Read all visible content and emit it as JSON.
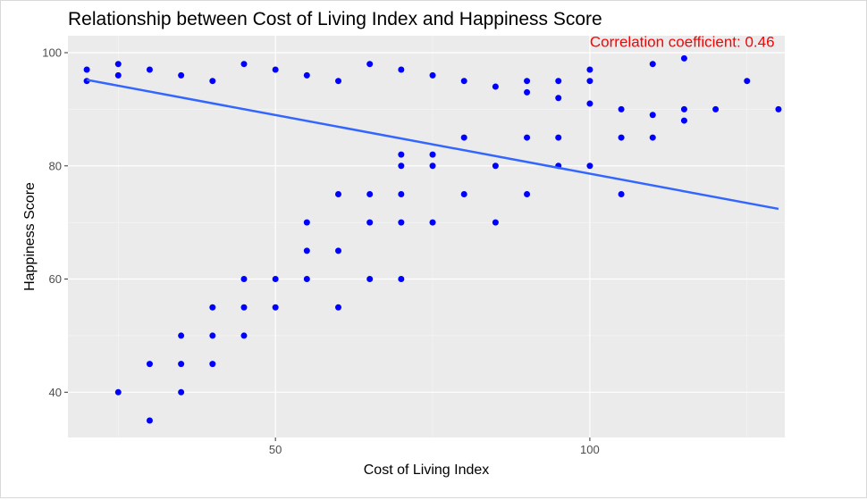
{
  "chart_data": {
    "type": "scatter",
    "title": "Relationship between Cost of Living Index and Happiness Score",
    "xlabel": "Cost of Living Index",
    "ylabel": "Happiness Score",
    "xlim": [
      17,
      131
    ],
    "ylim": [
      32,
      103
    ],
    "x_ticks": [
      50,
      100
    ],
    "y_ticks": [
      40,
      60,
      80,
      100
    ],
    "x_tick_labels": [
      "50",
      "100"
    ],
    "y_tick_labels": [
      "40",
      "60",
      "80",
      "100"
    ],
    "grid": true,
    "point_color": "#0000ff",
    "trend_color": "#3366ff",
    "annotation": {
      "text": "Correlation coefficient: 0.46",
      "color": "#ff0000",
      "x": 100,
      "y": 101
    },
    "points": [
      [
        20,
        97
      ],
      [
        20,
        95
      ],
      [
        25,
        98
      ],
      [
        25,
        96
      ],
      [
        25,
        40
      ],
      [
        30,
        97
      ],
      [
        30,
        45
      ],
      [
        30,
        35
      ],
      [
        35,
        96
      ],
      [
        35,
        50
      ],
      [
        35,
        45
      ],
      [
        35,
        40
      ],
      [
        40,
        95
      ],
      [
        40,
        55
      ],
      [
        40,
        50
      ],
      [
        40,
        45
      ],
      [
        45,
        98
      ],
      [
        45,
        60
      ],
      [
        45,
        55
      ],
      [
        45,
        50
      ],
      [
        50,
        97
      ],
      [
        50,
        60
      ],
      [
        50,
        55
      ],
      [
        55,
        96
      ],
      [
        55,
        70
      ],
      [
        55,
        65
      ],
      [
        55,
        60
      ],
      [
        60,
        95
      ],
      [
        60,
        75
      ],
      [
        60,
        65
      ],
      [
        60,
        55
      ],
      [
        65,
        98
      ],
      [
        65,
        75
      ],
      [
        65,
        70
      ],
      [
        65,
        60
      ],
      [
        70,
        97
      ],
      [
        70,
        82
      ],
      [
        70,
        80
      ],
      [
        70,
        75
      ],
      [
        70,
        70
      ],
      [
        70,
        60
      ],
      [
        75,
        96
      ],
      [
        75,
        82
      ],
      [
        75,
        80
      ],
      [
        75,
        70
      ],
      [
        80,
        95
      ],
      [
        80,
        85
      ],
      [
        80,
        75
      ],
      [
        85,
        94
      ],
      [
        85,
        80
      ],
      [
        85,
        70
      ],
      [
        90,
        95
      ],
      [
        90,
        93
      ],
      [
        90,
        85
      ],
      [
        90,
        75
      ],
      [
        95,
        95
      ],
      [
        95,
        92
      ],
      [
        95,
        85
      ],
      [
        95,
        80
      ],
      [
        100,
        97
      ],
      [
        100,
        95
      ],
      [
        100,
        91
      ],
      [
        100,
        80
      ],
      [
        105,
        90
      ],
      [
        105,
        85
      ],
      [
        105,
        75
      ],
      [
        110,
        98
      ],
      [
        110,
        89
      ],
      [
        110,
        85
      ],
      [
        115,
        99
      ],
      [
        115,
        90
      ],
      [
        115,
        88
      ],
      [
        120,
        90
      ],
      [
        125,
        95
      ],
      [
        130,
        90
      ]
    ],
    "trend_line": {
      "x": [
        20,
        130
      ],
      "y": [
        95.2,
        72.4
      ]
    }
  }
}
